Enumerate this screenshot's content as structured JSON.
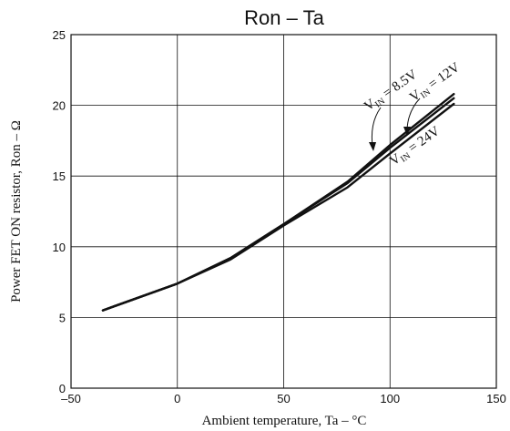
{
  "chart_data": {
    "type": "line",
    "title": "Ron – Ta",
    "xlabel": "Ambient temperature,  Ta  –  °C",
    "ylabel": "Power FET ON resistor, Ron  –  Ω",
    "xlim": [
      -50,
      150
    ],
    "ylim": [
      0,
      25
    ],
    "xticks": [
      -50,
      0,
      50,
      100,
      150
    ],
    "yticks": [
      0,
      5,
      10,
      15,
      20,
      25
    ],
    "grid": true,
    "series": [
      {
        "name": "VIN = 8.5V",
        "x": [
          -35,
          0,
          25,
          50,
          80,
          100,
          130
        ],
        "y": [
          5.5,
          7.4,
          9.2,
          11.6,
          14.6,
          17.2,
          20.8
        ]
      },
      {
        "name": "VIN = 12V",
        "x": [
          -35,
          0,
          25,
          50,
          80,
          100,
          130
        ],
        "y": [
          5.5,
          7.4,
          9.2,
          11.6,
          14.5,
          17.0,
          20.5
        ]
      },
      {
        "name": "VIN = 24V",
        "x": [
          -35,
          0,
          25,
          50,
          80,
          100,
          130
        ],
        "y": [
          5.5,
          7.4,
          9.1,
          11.5,
          14.2,
          16.6,
          20.1
        ]
      }
    ],
    "annotations": [
      {
        "main": "V",
        "sub": "IN",
        "rest": " = 8.5V"
      },
      {
        "main": "V",
        "sub": "IN",
        "rest": " = 12V"
      },
      {
        "main": "V",
        "sub": "IN",
        "rest": " = 24V"
      }
    ]
  }
}
